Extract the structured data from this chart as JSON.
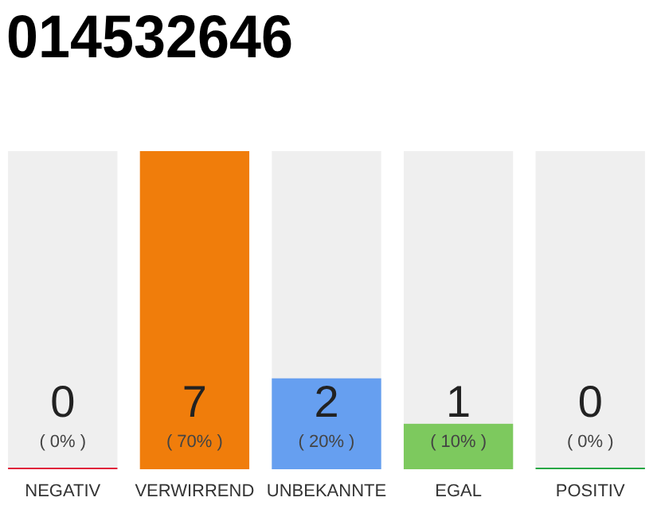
{
  "chart_data": {
    "type": "bar",
    "title": "014532646",
    "categories": [
      "NEGATIV",
      "VERWIRREND",
      "UNBEKANNTE",
      "EGAL",
      "POSITIV"
    ],
    "values": [
      0,
      70,
      20,
      10,
      0
    ],
    "colors": [
      "#e0203a",
      "#f07d0b",
      "#669ff0",
      "#7dc95e",
      "#28a745"
    ],
    "value_labels": [
      "( 0% )",
      "( 70% )",
      "( 20% )",
      "( 10% )",
      "( 0% )"
    ],
    "annotations": [
      "0",
      "7",
      "2",
      "1",
      "0"
    ]
  }
}
